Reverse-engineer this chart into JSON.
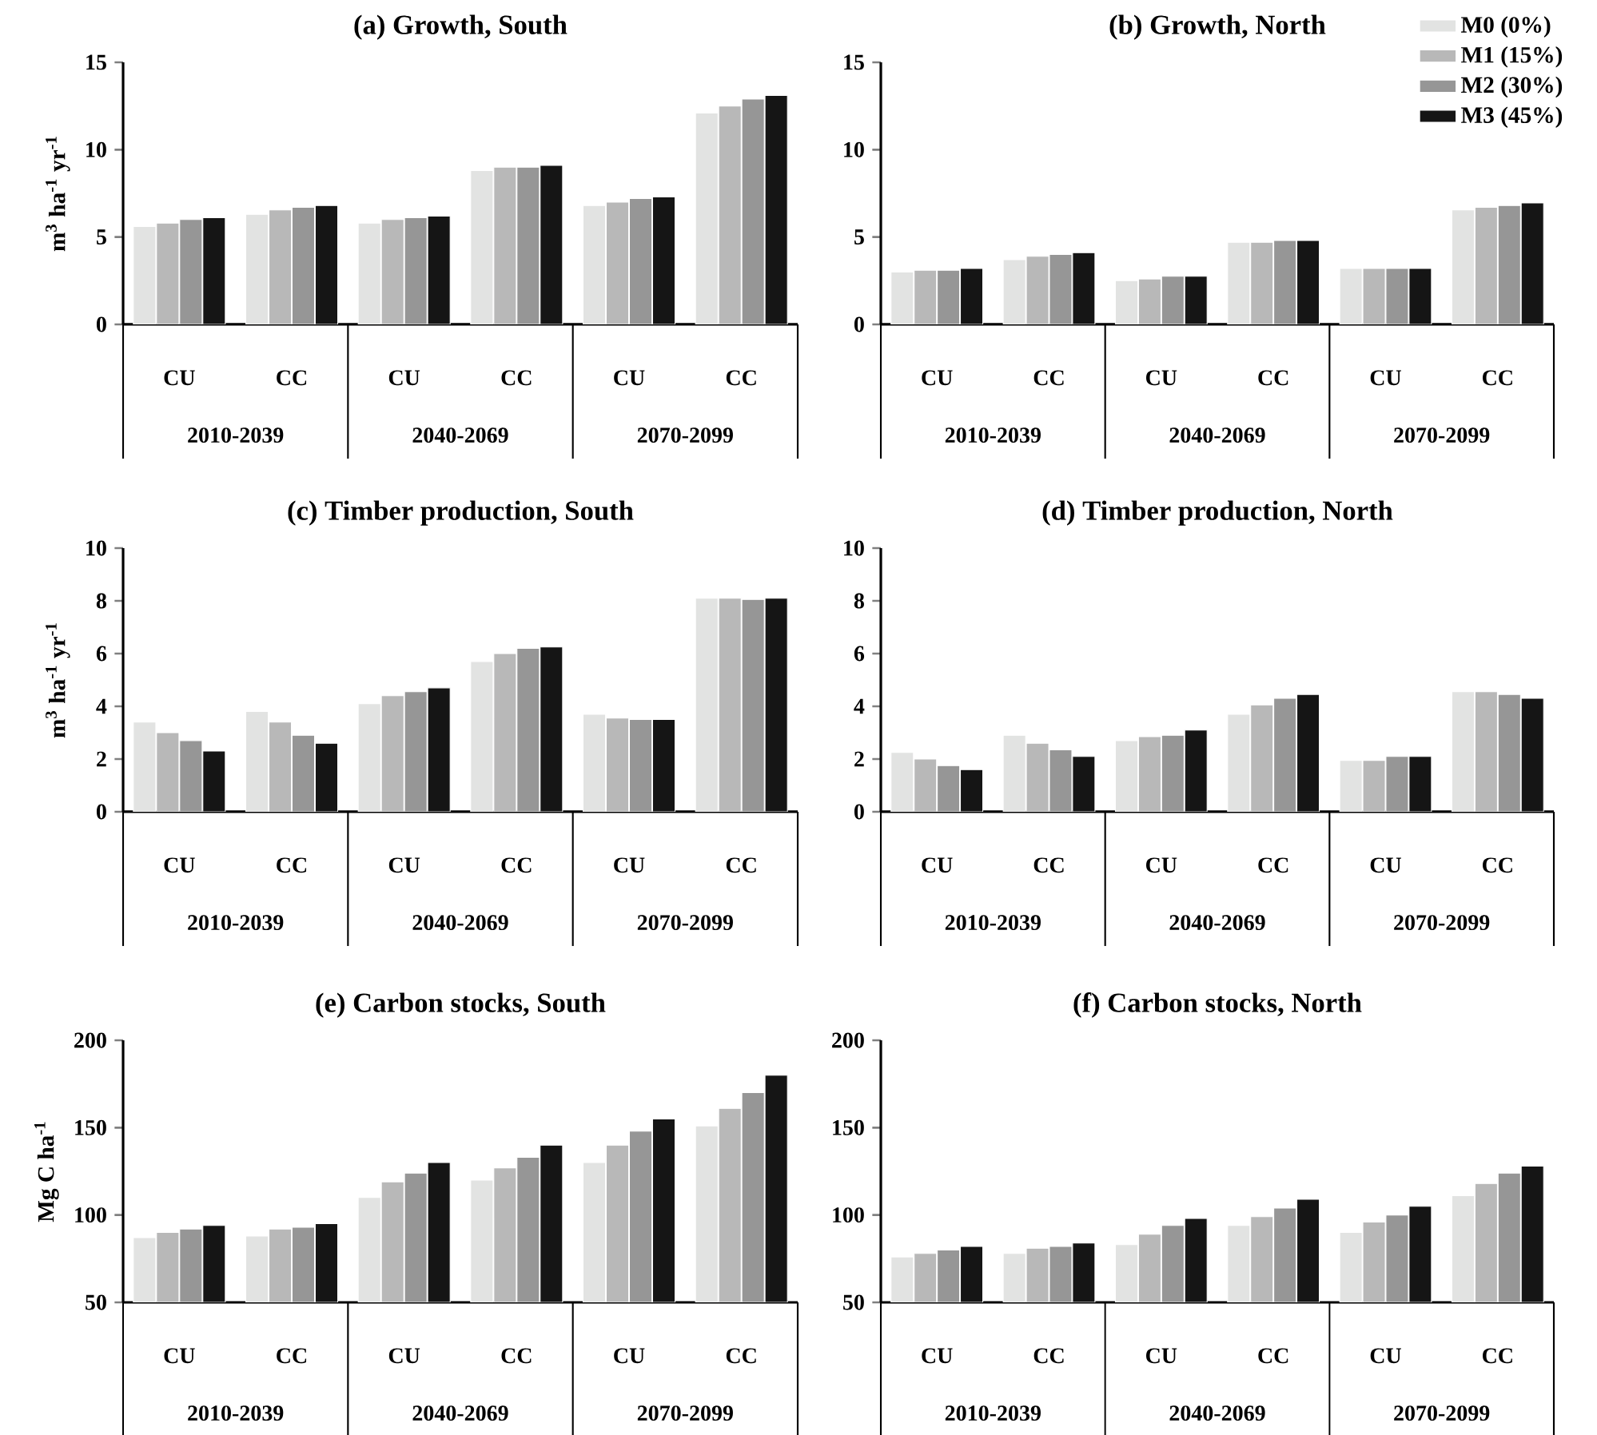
{
  "chart_data": [
    {
      "type": "bar",
      "title": "(a) Growth, South",
      "ylabel": "m$^{3}$ ha$^{-1}$ yr$^{-1}$",
      "categories": [
        "CU",
        "CC",
        "CU",
        "CC",
        "CU",
        "CC"
      ],
      "annotations": [
        "2010-2039",
        "2040-2069",
        "2070-2099"
      ],
      "ylim": [
        0,
        15
      ],
      "yticks": [
        0,
        5,
        10,
        15
      ],
      "series": [
        {
          "color": "#e2e3e2",
          "values": [
            5.6,
            6.3,
            5.8,
            8.8,
            6.8,
            12.1
          ]
        },
        {
          "color": "#b8b8b8",
          "values": [
            5.8,
            6.55,
            6.0,
            9.0,
            7.0,
            12.5
          ]
        },
        {
          "color": "#969696",
          "values": [
            6.0,
            6.7,
            6.1,
            9.0,
            7.2,
            12.9
          ]
        },
        {
          "color": "#151515",
          "values": [
            6.1,
            6.8,
            6.2,
            9.1,
            7.3,
            13.1
          ]
        }
      ]
    },
    {
      "type": "bar",
      "title": "(b) Growth, North",
      "categories": [
        "CU",
        "CC",
        "CU",
        "CC",
        "CU",
        "CC"
      ],
      "annotations": [
        "2010-2039",
        "2040-2069",
        "2070-2099"
      ],
      "ylim": [
        0,
        15
      ],
      "yticks": [
        0,
        5,
        10,
        15
      ],
      "legend": "top right",
      "series": [
        {
          "name": "M0 (0%)",
          "color": "#e2e3e2",
          "values": [
            3.0,
            3.7,
            2.5,
            4.7,
            3.2,
            6.55
          ]
        },
        {
          "name": "M1 (15%)",
          "color": "#b8b8b8",
          "values": [
            3.1,
            3.9,
            2.6,
            4.7,
            3.2,
            6.7
          ]
        },
        {
          "name": "M2 (30%)",
          "color": "#969696",
          "values": [
            3.1,
            4.0,
            2.75,
            4.8,
            3.2,
            6.8
          ]
        },
        {
          "name": "M3 (45%)",
          "color": "#151515",
          "values": [
            3.2,
            4.1,
            2.75,
            4.8,
            3.2,
            6.95
          ]
        }
      ]
    },
    {
      "type": "bar",
      "title": "(c) Timber production, South",
      "ylabel": "m$^{3}$ ha$^{-1}$ yr$^{-1}$",
      "categories": [
        "CU",
        "CC",
        "CU",
        "CC",
        "CU",
        "CC"
      ],
      "annotations": [
        "2010-2039",
        "2040-2069",
        "2070-2099"
      ],
      "ylim": [
        0,
        10
      ],
      "yticks": [
        0,
        2,
        4,
        6,
        8,
        10
      ],
      "series": [
        {
          "color": "#e2e3e2",
          "values": [
            3.4,
            3.8,
            4.1,
            5.7,
            3.7,
            8.1
          ]
        },
        {
          "color": "#b8b8b8",
          "values": [
            3.0,
            3.4,
            4.4,
            6.0,
            3.55,
            8.1
          ]
        },
        {
          "color": "#969696",
          "values": [
            2.7,
            2.9,
            4.55,
            6.2,
            3.5,
            8.05
          ]
        },
        {
          "color": "#151515",
          "values": [
            2.3,
            2.6,
            4.7,
            6.25,
            3.5,
            8.1
          ]
        }
      ]
    },
    {
      "type": "bar",
      "title": "(d) Timber production, North",
      "categories": [
        "CU",
        "CC",
        "CU",
        "CC",
        "CU",
        "CC"
      ],
      "annotations": [
        "2010-2039",
        "2040-2069",
        "2070-2099"
      ],
      "ylim": [
        0,
        10
      ],
      "yticks": [
        0,
        2,
        4,
        6,
        8,
        10
      ],
      "series": [
        {
          "color": "#e2e3e2",
          "values": [
            2.25,
            2.9,
            2.7,
            3.7,
            1.95,
            4.55
          ]
        },
        {
          "color": "#b8b8b8",
          "values": [
            2.0,
            2.6,
            2.85,
            4.05,
            1.95,
            4.55
          ]
        },
        {
          "color": "#969696",
          "values": [
            1.75,
            2.35,
            2.9,
            4.3,
            2.1,
            4.45
          ]
        },
        {
          "color": "#151515",
          "values": [
            1.6,
            2.1,
            3.1,
            4.45,
            2.1,
            4.3
          ]
        }
      ]
    },
    {
      "type": "bar",
      "title": "(e) Carbon stocks, South",
      "ylabel": "Mg C  ha$^{-1}$",
      "categories": [
        "CU",
        "CC",
        "CU",
        "CC",
        "CU",
        "CC"
      ],
      "annotations": [
        "2010-2039",
        "2040-2069",
        "2070-2099"
      ],
      "ylim": [
        50,
        200
      ],
      "yticks": [
        50,
        100,
        150,
        200
      ],
      "series": [
        {
          "color": "#e2e3e2",
          "values": [
            87,
            88,
            110,
            120,
            130,
            151
          ]
        },
        {
          "color": "#b8b8b8",
          "values": [
            90,
            92,
            119,
            127,
            140,
            161
          ]
        },
        {
          "color": "#969696",
          "values": [
            92,
            93,
            124,
            133,
            148,
            170
          ]
        },
        {
          "color": "#151515",
          "values": [
            94,
            95,
            130,
            140,
            155,
            180
          ]
        }
      ]
    },
    {
      "type": "bar",
      "title": "(f) Carbon stocks, North",
      "categories": [
        "CU",
        "CC",
        "CU",
        "CC",
        "CU",
        "CC"
      ],
      "annotations": [
        "2010-2039",
        "2040-2069",
        "2070-2099"
      ],
      "ylim": [
        50,
        200
      ],
      "yticks": [
        50,
        100,
        150,
        200
      ],
      "series": [
        {
          "color": "#e2e3e2",
          "values": [
            76,
            78,
            83,
            94,
            90,
            111
          ]
        },
        {
          "color": "#b8b8b8",
          "values": [
            78,
            81,
            89,
            99,
            96,
            118
          ]
        },
        {
          "color": "#969696",
          "values": [
            80,
            82,
            94,
            104,
            100,
            124
          ]
        },
        {
          "color": "#151515",
          "values": [
            82,
            84,
            98,
            109,
            105,
            128
          ]
        }
      ]
    }
  ]
}
